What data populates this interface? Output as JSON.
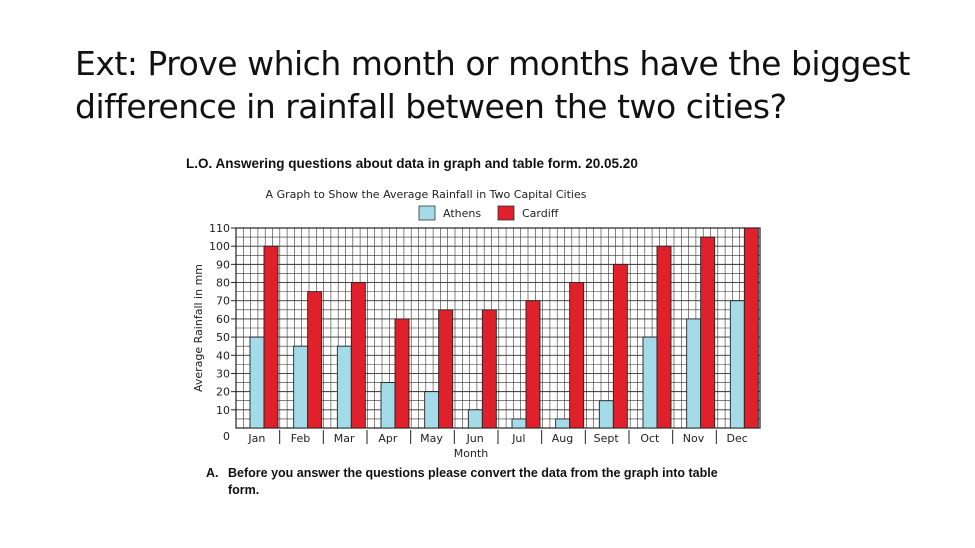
{
  "slide": {
    "title_line1": "Ext: Prove which month or months have the biggest",
    "title_line2": "difference in rainfall between the two cities?",
    "lo": "L.O. Answering questions about data in graph and table form.  20.05.20",
    "note_label": "A.",
    "note_line1": "Before you answer the questions please convert the data from the graph into table",
    "note_line2": "form."
  },
  "colors": {
    "athens": "#a3dbe9",
    "cardiff": "#e0202a",
    "grid": "#333333"
  },
  "chart_data": {
    "type": "bar",
    "title": "A Graph to Show the Average Rainfall in Two Capital Cities",
    "xlabel": "Month",
    "ylabel": "Average Rainfall in mm",
    "legend_position": "top-center",
    "grid": true,
    "ylim": [
      0,
      110
    ],
    "yticks": [
      0,
      10,
      20,
      30,
      40,
      50,
      60,
      70,
      80,
      90,
      100,
      110
    ],
    "categories": [
      "Jan",
      "Feb",
      "Mar",
      "Apr",
      "May",
      "Jun",
      "Jul",
      "Aug",
      "Sept",
      "Oct",
      "Nov",
      "Dec"
    ],
    "series": [
      {
        "name": "Athens",
        "values": [
          50,
          45,
          45,
          25,
          20,
          10,
          5,
          5,
          15,
          50,
          60,
          70
        ]
      },
      {
        "name": "Cardiff",
        "values": [
          100,
          75,
          80,
          60,
          65,
          65,
          70,
          80,
          90,
          100,
          105,
          110
        ]
      }
    ]
  }
}
